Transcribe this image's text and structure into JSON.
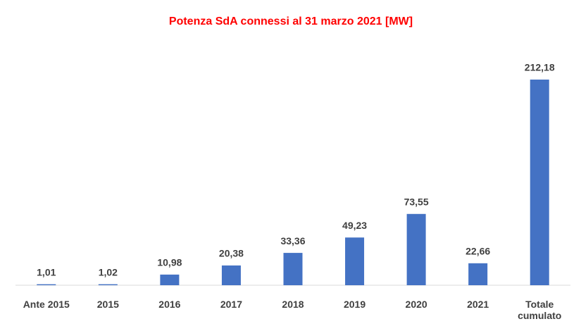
{
  "chart_data": {
    "type": "bar",
    "title": "Potenza SdA connessi al 31 marzo 2021 [MW]",
    "categories": [
      "Ante 2015",
      "2015",
      "2016",
      "2017",
      "2018",
      "2019",
      "2020",
      "2021",
      "Totale cumulato"
    ],
    "values": [
      1.01,
      1.02,
      10.98,
      20.38,
      33.36,
      49.23,
      73.55,
      22.66,
      212.18
    ],
    "value_labels": [
      "1,01",
      "1,02",
      "10,98",
      "20,38",
      "33,36",
      "49,23",
      "73,55",
      "22,66",
      "212,18"
    ],
    "color": "#4472c4"
  }
}
